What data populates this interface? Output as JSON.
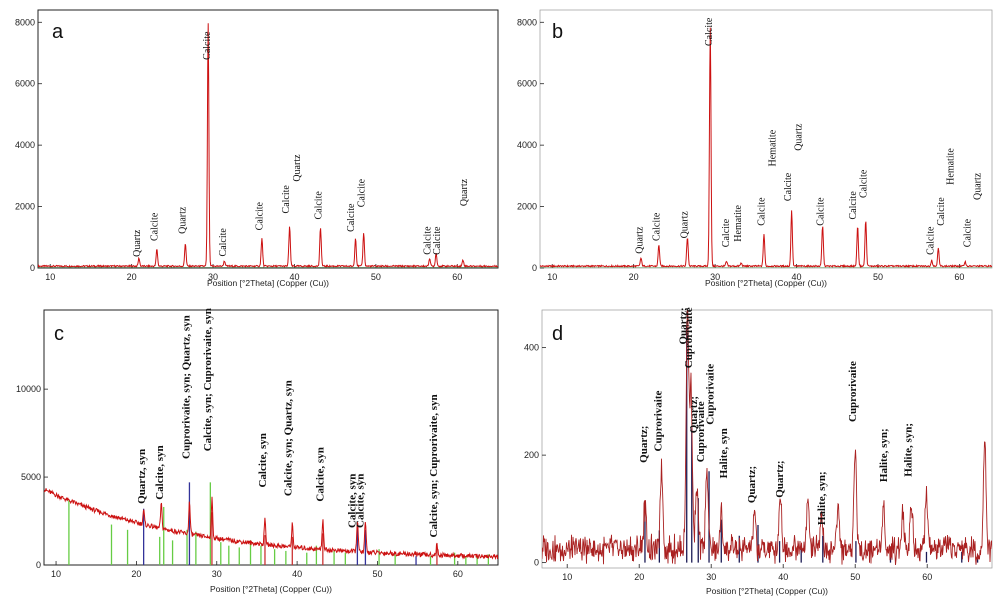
{
  "chart_data": [
    {
      "id": "a",
      "type": "line",
      "panel_label": "a",
      "xlabel": "Position [°2Theta] (Copper (Cu))",
      "xlim": [
        8.5,
        65
      ],
      "ylim": [
        0,
        8400
      ],
      "x_ticks": [
        10,
        20,
        30,
        40,
        50,
        60
      ],
      "y_ticks": [
        0,
        2000,
        4000,
        6000,
        8000
      ],
      "line_color": "#cc1111",
      "baseline": 60,
      "peaks": [
        {
          "x": 20.9,
          "y": 260
        },
        {
          "x": 23.1,
          "y": 560
        },
        {
          "x": 26.6,
          "y": 750
        },
        {
          "x": 29.4,
          "y": 7900
        },
        {
          "x": 31.4,
          "y": 170
        },
        {
          "x": 36.0,
          "y": 900
        },
        {
          "x": 39.4,
          "y": 1300
        },
        {
          "x": 43.2,
          "y": 1250
        },
        {
          "x": 47.5,
          "y": 930
        },
        {
          "x": 48.5,
          "y": 1100
        },
        {
          "x": 56.6,
          "y": 260
        },
        {
          "x": 57.4,
          "y": 420
        },
        {
          "x": 60.7,
          "y": 200
        }
      ],
      "annotations": [
        {
          "x": 21.0,
          "text": "Quartz",
          "y": 1250
        },
        {
          "x": 23.2,
          "text": "Calcite",
          "y": 1800
        },
        {
          "x": 26.6,
          "text": "Quartz",
          "y": 2000
        },
        {
          "x": 29.6,
          "text": "Calcite",
          "y": 7700
        },
        {
          "x": 31.6,
          "text": "Calcite",
          "y": 1300
        },
        {
          "x": 36.1,
          "text": "Calcite",
          "y": 2150
        },
        {
          "x": 39.3,
          "text": "Calcite",
          "y": 2700
        },
        {
          "x": 40.7,
          "text": "Quartz",
          "y": 3700
        },
        {
          "x": 43.3,
          "text": "Calcite",
          "y": 2500
        },
        {
          "x": 47.3,
          "text": "Calcite",
          "y": 2100
        },
        {
          "x": 48.6,
          "text": "Calcite",
          "y": 2900
        },
        {
          "x": 56.7,
          "text": "Calcite",
          "y": 1350
        },
        {
          "x": 57.9,
          "text": "Calcite",
          "y": 1350
        },
        {
          "x": 61.2,
          "text": "Quartz",
          "y": 2900
        }
      ]
    },
    {
      "id": "b",
      "type": "line",
      "panel_label": "b",
      "xlabel": "Position [°2Theta] (Copper (Cu))",
      "xlim": [
        8.5,
        64
      ],
      "ylim": [
        0,
        8400
      ],
      "x_ticks": [
        10,
        20,
        30,
        40,
        50,
        60
      ],
      "y_ticks": [
        0,
        2000,
        4000,
        6000,
        8000
      ],
      "line_color": "#cc1111",
      "baseline": 60,
      "peaks": [
        {
          "x": 20.9,
          "y": 260
        },
        {
          "x": 23.1,
          "y": 700
        },
        {
          "x": 26.6,
          "y": 950
        },
        {
          "x": 29.4,
          "y": 7800
        },
        {
          "x": 31.4,
          "y": 150
        },
        {
          "x": 33.2,
          "y": 100
        },
        {
          "x": 36.0,
          "y": 1050
        },
        {
          "x": 39.4,
          "y": 1800
        },
        {
          "x": 43.2,
          "y": 1300
        },
        {
          "x": 47.5,
          "y": 1300
        },
        {
          "x": 48.5,
          "y": 1500
        },
        {
          "x": 56.6,
          "y": 200
        },
        {
          "x": 57.4,
          "y": 600
        },
        {
          "x": 60.7,
          "y": 150
        }
      ],
      "annotations": [
        {
          "x": 21.1,
          "text": "Quartz",
          "y": 1350
        },
        {
          "x": 23.2,
          "text": "Calcite",
          "y": 1800
        },
        {
          "x": 26.6,
          "text": "Quartz",
          "y": 1850
        },
        {
          "x": 29.6,
          "text": "Calcite",
          "y": 8150
        },
        {
          "x": 31.7,
          "text": "Calcite",
          "y": 1600
        },
        {
          "x": 33.2,
          "text": "Hematite",
          "y": 2050
        },
        {
          "x": 36.1,
          "text": "Calcite",
          "y": 2300
        },
        {
          "x": 37.4,
          "text": "Hematite",
          "y": 4500
        },
        {
          "x": 39.3,
          "text": "Calcite",
          "y": 3100
        },
        {
          "x": 40.6,
          "text": "Quartz",
          "y": 4700
        },
        {
          "x": 43.3,
          "text": "Calcite",
          "y": 2300
        },
        {
          "x": 47.3,
          "text": "Calcite",
          "y": 2500
        },
        {
          "x": 48.6,
          "text": "Calcite",
          "y": 3200
        },
        {
          "x": 56.8,
          "text": "Calcite",
          "y": 1350
        },
        {
          "x": 58.1,
          "text": "Calcite",
          "y": 2300
        },
        {
          "x": 59.3,
          "text": "Hematite",
          "y": 3900
        },
        {
          "x": 61.4,
          "text": "Calcite",
          "y": 1600
        },
        {
          "x": 62.6,
          "text": "Quartz",
          "y": 3100
        }
      ]
    },
    {
      "id": "c",
      "type": "line",
      "panel_label": "c",
      "xlabel": "Position [°2Theta] (Copper (Cu))",
      "xlim": [
        8.5,
        65
      ],
      "ylim": [
        0,
        14500
      ],
      "x_ticks": [
        10,
        20,
        30,
        40,
        50,
        60
      ],
      "y_ticks": [
        0,
        5000,
        10000
      ],
      "line_color": "#cc1111",
      "background": {
        "start": 4300,
        "end": 300,
        "decay": 18
      },
      "peaks": [
        {
          "x": 20.9,
          "y": 800
        },
        {
          "x": 23.1,
          "y": 1400
        },
        {
          "x": 26.6,
          "y": 1800
        },
        {
          "x": 29.4,
          "y": 2200
        },
        {
          "x": 36.0,
          "y": 1400
        },
        {
          "x": 39.4,
          "y": 1300
        },
        {
          "x": 43.2,
          "y": 1700
        },
        {
          "x": 47.5,
          "y": 1800
        },
        {
          "x": 48.5,
          "y": 1700
        },
        {
          "x": 57.4,
          "y": 600
        }
      ],
      "sticks": [
        {
          "x": 11.6,
          "h": 3700,
          "color": "#66cc44"
        },
        {
          "x": 16.9,
          "h": 2300,
          "color": "#66cc44"
        },
        {
          "x": 18.9,
          "h": 2000,
          "color": "#66cc44"
        },
        {
          "x": 20.9,
          "h": 3200,
          "color": "#333399"
        },
        {
          "x": 22.9,
          "h": 1600,
          "color": "#66cc44"
        },
        {
          "x": 23.4,
          "h": 3300,
          "color": "#66cc44"
        },
        {
          "x": 24.5,
          "h": 1400,
          "color": "#66cc44"
        },
        {
          "x": 26.3,
          "h": 2000,
          "color": "#66cc44"
        },
        {
          "x": 26.6,
          "h": 4700,
          "color": "#333399"
        },
        {
          "x": 27.4,
          "h": 1900,
          "color": "#66cc44"
        },
        {
          "x": 29.2,
          "h": 4700,
          "color": "#66cc44"
        },
        {
          "x": 29.4,
          "h": 3000,
          "color": "#cc3333"
        },
        {
          "x": 30.5,
          "h": 1300,
          "color": "#66cc44"
        },
        {
          "x": 31.5,
          "h": 1100,
          "color": "#66cc44"
        },
        {
          "x": 32.8,
          "h": 1000,
          "color": "#66cc44"
        },
        {
          "x": 34.2,
          "h": 1400,
          "color": "#66cc44"
        },
        {
          "x": 35.5,
          "h": 1100,
          "color": "#66cc44"
        },
        {
          "x": 36.0,
          "h": 1700,
          "color": "#cc3333"
        },
        {
          "x": 37.2,
          "h": 900,
          "color": "#66cc44"
        },
        {
          "x": 38.6,
          "h": 800,
          "color": "#66cc44"
        },
        {
          "x": 39.4,
          "h": 1600,
          "color": "#cc3333"
        },
        {
          "x": 41.2,
          "h": 700,
          "color": "#66cc44"
        },
        {
          "x": 42.4,
          "h": 1100,
          "color": "#66cc44"
        },
        {
          "x": 43.2,
          "h": 1800,
          "color": "#cc3333"
        },
        {
          "x": 44.6,
          "h": 800,
          "color": "#66cc44"
        },
        {
          "x": 46.0,
          "h": 700,
          "color": "#66cc44"
        },
        {
          "x": 47.5,
          "h": 2200,
          "color": "#333399"
        },
        {
          "x": 48.5,
          "h": 2000,
          "color": "#333399"
        },
        {
          "x": 50.2,
          "h": 900,
          "color": "#66cc44"
        },
        {
          "x": 52.2,
          "h": 600,
          "color": "#66cc44"
        },
        {
          "x": 54.8,
          "h": 500,
          "color": "#333399"
        },
        {
          "x": 56.6,
          "h": 500,
          "color": "#66cc44"
        },
        {
          "x": 57.4,
          "h": 1000,
          "color": "#cc3333"
        },
        {
          "x": 59.6,
          "h": 700,
          "color": "#66cc44"
        },
        {
          "x": 61.0,
          "h": 500,
          "color": "#66cc44"
        },
        {
          "x": 62.4,
          "h": 500,
          "color": "#66cc44"
        },
        {
          "x": 63.8,
          "h": 600,
          "color": "#66cc44"
        }
      ],
      "annotations": [
        {
          "x": 21.1,
          "text": "Quartz, syn",
          "y": 6600
        },
        {
          "x": 23.3,
          "text": "Calcite, syn",
          "y": 6800
        },
        {
          "x": 26.6,
          "text": "Cuprorivaite, syn; Quartz, syn",
          "y": 14200
        },
        {
          "x": 29.3,
          "text": "Calcite, syn; Cuprorivaite, syn",
          "y": 14600
        },
        {
          "x": 36.1,
          "text": "Calcite, syn",
          "y": 7500
        },
        {
          "x": 39.3,
          "text": "Calcite, syn; Quartz, syn",
          "y": 10500
        },
        {
          "x": 43.3,
          "text": "Calcite, syn",
          "y": 6700
        },
        {
          "x": 47.3,
          "text": "Calcite, syn",
          "y": 5200
        },
        {
          "x": 48.3,
          "text": "Calcite, syn",
          "y": 5200
        },
        {
          "x": 57.4,
          "text": "Calcite, syn; Cuprorivaite, syn",
          "y": 9700
        }
      ]
    },
    {
      "id": "d",
      "type": "line",
      "panel_label": "d",
      "xlabel": "Position [°2Theta] (Copper (Cu))",
      "xlim": [
        6.5,
        69
      ],
      "ylim": [
        -10,
        470
      ],
      "x_ticks": [
        10,
        20,
        30,
        40,
        50,
        60
      ],
      "y_ticks": [
        0,
        200,
        400
      ],
      "line_color": "#aa2222",
      "noise_base": 25,
      "peaks": [
        {
          "x": 20.8,
          "y": 80
        },
        {
          "x": 23.1,
          "y": 150
        },
        {
          "x": 26.7,
          "y": 440
        },
        {
          "x": 27.2,
          "y": 300
        },
        {
          "x": 28.0,
          "y": 110
        },
        {
          "x": 29.4,
          "y": 150
        },
        {
          "x": 31.4,
          "y": 70
        },
        {
          "x": 36.0,
          "y": 60
        },
        {
          "x": 39.6,
          "y": 110
        },
        {
          "x": 43.4,
          "y": 90
        },
        {
          "x": 45.3,
          "y": 75
        },
        {
          "x": 47.6,
          "y": 80
        },
        {
          "x": 50.0,
          "y": 190
        },
        {
          "x": 53.9,
          "y": 80
        },
        {
          "x": 56.6,
          "y": 70
        },
        {
          "x": 57.8,
          "y": 90
        },
        {
          "x": 59.9,
          "y": 100
        },
        {
          "x": 68.0,
          "y": 210
        }
      ],
      "sticks": [
        {
          "x": 20.8,
          "h": 90,
          "color": "#1a1a55"
        },
        {
          "x": 22.8,
          "h": 60,
          "color": "#1a1a55"
        },
        {
          "x": 26.6,
          "h": 440,
          "color": "#1a1a55"
        },
        {
          "x": 27.3,
          "h": 250,
          "color": "#1a1a55"
        },
        {
          "x": 28.2,
          "h": 120,
          "color": "#1a1a55"
        },
        {
          "x": 29.7,
          "h": 170,
          "color": "#1a1a55"
        },
        {
          "x": 31.4,
          "h": 80,
          "color": "#1a1a55"
        },
        {
          "x": 33.9,
          "h": 50,
          "color": "#1a1a55"
        },
        {
          "x": 36.5,
          "h": 70,
          "color": "#1a1a55"
        },
        {
          "x": 39.5,
          "h": 40,
          "color": "#1a1a55"
        },
        {
          "x": 42.5,
          "h": 30,
          "color": "#1a1a55"
        },
        {
          "x": 45.5,
          "h": 50,
          "color": "#1a1a55"
        },
        {
          "x": 50.1,
          "h": 40,
          "color": "#1a1a55"
        },
        {
          "x": 54.9,
          "h": 30,
          "color": "#1a1a55"
        },
        {
          "x": 59.9,
          "h": 20,
          "color": "#1a1a55"
        },
        {
          "x": 64.8,
          "h": 20,
          "color": "#1a1a55"
        },
        {
          "x": 67.0,
          "h": 15,
          "color": "#1a1a55"
        }
      ],
      "annotations": [
        {
          "x": 21.1,
          "text": "Quartz;",
          "y": 255
        },
        {
          "x": 23.1,
          "text": "Cuprorivaite",
          "y": 320
        },
        {
          "x": 26.6,
          "text": "Quartz;",
          "y": 475
        },
        {
          "x": 27.3,
          "text": "Cuprorivaite",
          "y": 475
        },
        {
          "x": 28.0,
          "text": "Quartz;",
          "y": 310
        },
        {
          "x": 29.0,
          "text": "Cuprorivaite",
          "y": 300
        },
        {
          "x": 30.3,
          "text": "Cuprorivaite",
          "y": 370
        },
        {
          "x": 32.2,
          "text": "Halite, syn",
          "y": 250
        },
        {
          "x": 36.1,
          "text": "Quartz;",
          "y": 180
        },
        {
          "x": 40.0,
          "text": "Quartz;",
          "y": 190
        },
        {
          "x": 45.8,
          "text": "Halite, syn;",
          "y": 170
        },
        {
          "x": 50.1,
          "text": "Cuprorivaite",
          "y": 375
        },
        {
          "x": 54.4,
          "text": "Halite, syn;",
          "y": 250
        },
        {
          "x": 57.8,
          "text": "Halite, syn;",
          "y": 260
        }
      ]
    }
  ]
}
